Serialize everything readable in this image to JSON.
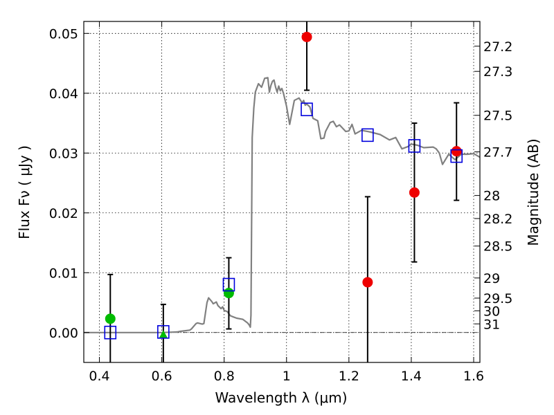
{
  "chart_data": {
    "type": "scatter",
    "xlabel": "Wavelength  λ (μm)",
    "ylabel": "Flux  Fν  ( μJy )",
    "y2label": "Magnitude (AB)",
    "xlim": [
      0.35,
      1.62
    ],
    "ylim": [
      -0.005,
      0.052
    ],
    "grid": true,
    "x_ticks": [
      {
        "value": 0.4,
        "label": "0.4"
      },
      {
        "value": 0.6,
        "label": "0.6"
      },
      {
        "value": 0.8,
        "label": "0.8"
      },
      {
        "value": 1.0,
        "label": "1"
      },
      {
        "value": 1.2,
        "label": "1.2"
      },
      {
        "value": 1.4,
        "label": "1.4"
      },
      {
        "value": 1.6,
        "label": "1.6"
      }
    ],
    "y_ticks": [
      {
        "value": 0.0,
        "label": "0.00"
      },
      {
        "value": 0.01,
        "label": "0.01"
      },
      {
        "value": 0.02,
        "label": "0.02"
      },
      {
        "value": 0.03,
        "label": "0.03"
      },
      {
        "value": 0.04,
        "label": "0.04"
      },
      {
        "value": 0.05,
        "label": "0.05"
      }
    ],
    "mag_ticks": [
      {
        "mag": 27.2,
        "label": "27.2"
      },
      {
        "mag": 27.3,
        "label": "27.3"
      },
      {
        "mag": 27.5,
        "label": "27.5"
      },
      {
        "mag": 27.7,
        "label": "27.7"
      },
      {
        "mag": 28.0,
        "label": "28"
      },
      {
        "mag": 28.2,
        "label": "28.2"
      },
      {
        "mag": 28.5,
        "label": "28.5"
      },
      {
        "mag": 29.0,
        "label": "29"
      },
      {
        "mag": 29.5,
        "label": "29.5"
      },
      {
        "mag": 30.0,
        "label": "30"
      },
      {
        "mag": 31.0,
        "label": "31"
      }
    ],
    "model_sed": {
      "color": "#808080",
      "x": [
        0.35,
        0.5,
        0.6,
        0.65,
        0.66,
        0.69,
        0.695,
        0.71,
        0.715,
        0.73,
        0.735,
        0.745,
        0.75,
        0.76,
        0.765,
        0.775,
        0.78,
        0.79,
        0.795,
        0.8,
        0.81,
        0.82,
        0.83,
        0.84,
        0.86,
        0.875,
        0.88,
        0.884,
        0.886,
        0.89,
        0.895,
        0.9,
        0.91,
        0.92,
        0.93,
        0.94,
        0.945,
        0.95,
        0.955,
        0.96,
        0.965,
        0.97,
        0.975,
        0.98,
        0.985,
        0.99,
        1.0,
        1.01,
        1.025,
        1.04,
        1.05,
        1.055,
        1.06,
        1.065,
        1.075,
        1.085,
        1.1,
        1.11,
        1.12,
        1.125,
        1.14,
        1.15,
        1.16,
        1.17,
        1.19,
        1.2,
        1.21,
        1.22,
        1.24,
        1.26,
        1.27,
        1.3,
        1.33,
        1.35,
        1.37,
        1.39,
        1.4,
        1.42,
        1.44,
        1.47,
        1.48,
        1.49,
        1.5,
        1.52,
        1.54,
        1.56,
        1.58,
        1.6,
        1.62
      ],
      "y": [
        0.0,
        0.0,
        0.0,
        0.0001,
        0.0002,
        0.0004,
        0.0006,
        0.0015,
        0.0016,
        0.0014,
        0.0015,
        0.005,
        0.0058,
        0.0052,
        0.0048,
        0.0051,
        0.0045,
        0.004,
        0.0043,
        0.0037,
        0.0035,
        0.0028,
        0.0026,
        0.0024,
        0.0022,
        0.0016,
        0.0013,
        0.0009,
        0.0029,
        0.0326,
        0.0375,
        0.0402,
        0.0416,
        0.041,
        0.0425,
        0.0426,
        0.0402,
        0.0413,
        0.042,
        0.0422,
        0.041,
        0.0402,
        0.0412,
        0.0404,
        0.0408,
        0.04,
        0.0378,
        0.0348,
        0.0388,
        0.0392,
        0.0384,
        0.0388,
        0.038,
        0.0382,
        0.0377,
        0.0358,
        0.0354,
        0.0324,
        0.0325,
        0.0336,
        0.0351,
        0.0353,
        0.0344,
        0.0347,
        0.0336,
        0.0337,
        0.0348,
        0.0332,
        0.0338,
        0.0336,
        0.0335,
        0.0331,
        0.0322,
        0.0326,
        0.0307,
        0.0311,
        0.0315,
        0.0313,
        0.0309,
        0.031,
        0.0307,
        0.03,
        0.0281,
        0.0298,
        0.0289,
        0.0298,
        0.0298,
        0.0299,
        0.0293
      ]
    },
    "observed_points": [
      {
        "x": 0.435,
        "y": 0.0023,
        "yerr_low": -0.005,
        "yerr_high": 0.0097,
        "color": "#00bb00",
        "marker": "circle"
      },
      {
        "x": 0.605,
        "y": -0.0003,
        "yerr_low": -0.005,
        "yerr_high": 0.0047,
        "color": "#00bb00",
        "marker": "triangle"
      },
      {
        "x": 0.815,
        "y": 0.0066,
        "yerr_low": 0.0006,
        "yerr_high": 0.0125,
        "color": "#00bb00",
        "marker": "circle"
      },
      {
        "x": 1.065,
        "y": 0.0494,
        "yerr_low": 0.0405,
        "yerr_high": 0.052,
        "color": "#ee0000",
        "marker": "circle"
      },
      {
        "x": 1.26,
        "y": 0.0084,
        "yerr_low": -0.005,
        "yerr_high": 0.0227,
        "color": "#ee0000",
        "marker": "circle"
      },
      {
        "x": 1.41,
        "y": 0.0234,
        "yerr_low": 0.0118,
        "yerr_high": 0.035,
        "color": "#ee0000",
        "marker": "circle"
      },
      {
        "x": 1.545,
        "y": 0.0303,
        "yerr_low": 0.0221,
        "yerr_high": 0.0384,
        "color": "#ee0000",
        "marker": "circle"
      }
    ],
    "model_points": {
      "color": "#0000dd",
      "marker": "square-open",
      "x": [
        0.435,
        0.605,
        0.815,
        1.065,
        1.26,
        1.41,
        1.545
      ],
      "y": [
        0.0,
        0.0001,
        0.008,
        0.0373,
        0.033,
        0.0312,
        0.0295
      ]
    }
  }
}
